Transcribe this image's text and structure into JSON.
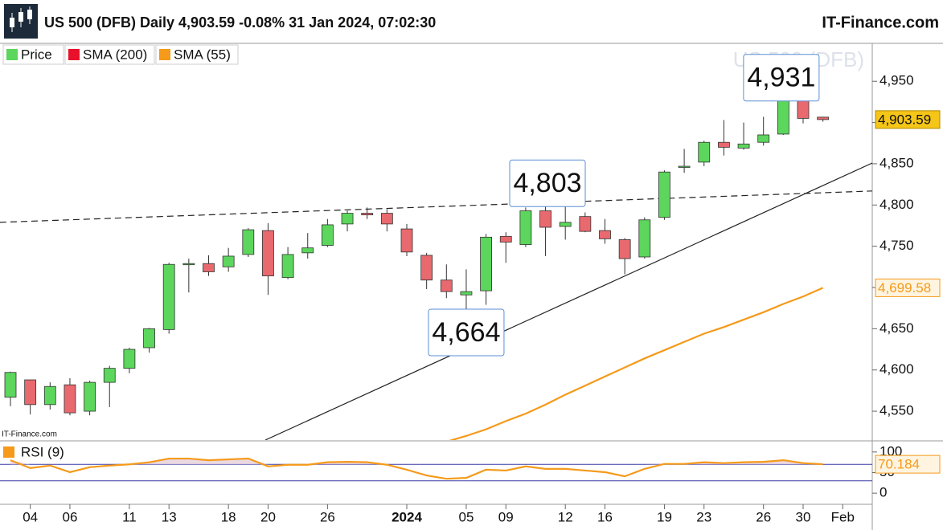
{
  "header": {
    "title": "US 500 (DFB) Daily 4,903.59 -0.08% 31 Jan 2024, 07:02:30",
    "brand": "IT-Finance.com"
  },
  "chart_data": [
    {
      "type": "candlestick",
      "watermark": "US 500 (DFB)",
      "source": "IT-Finance.com",
      "categories": [
        null,
        "04",
        null,
        "06",
        null,
        null,
        "11",
        null,
        "13",
        null,
        null,
        "18",
        null,
        "20",
        null,
        null,
        "26",
        null,
        null,
        null,
        "2024",
        null,
        null,
        "05",
        null,
        "09",
        null,
        null,
        "12",
        null,
        "16",
        null,
        null,
        "19",
        null,
        "23",
        null,
        null,
        "26",
        null,
        "30",
        null,
        "Feb"
      ],
      "series": [
        {
          "name": "Price",
          "up_color": "#5cd65c",
          "down_color": "#e8696e",
          "open": [
            4567,
            4588,
            4558,
            4582,
            4550,
            4585,
            4602,
            4627,
            4649,
            4728,
            4729,
            4725,
            4740,
            4769,
            4712,
            4742,
            4751,
            4777,
            4790,
            4790,
            4771,
            4739,
            4709,
            4691,
            4696,
            4762,
            4752,
            4793,
            4774,
            4786,
            4769,
            4758,
            4737,
            4785,
            4847,
            4852,
            4876,
            4869,
            4876,
            4886,
            4929,
            4906.5,
            null
          ],
          "high": [
            4598,
            4588,
            4585,
            4590,
            4587,
            4605,
            4627,
            4651,
            4730,
            4735,
            4739,
            4748,
            4772,
            4778,
            4749,
            4766,
            4783,
            4793,
            4797,
            4795,
            4777,
            4742,
            4728,
            4722,
            4765,
            4767,
            4797,
            4803,
            4803,
            4791,
            4783,
            4760,
            4785,
            4842,
            4868,
            4878,
            4903,
            4900,
            4907,
            4929,
            4931,
            4907,
            null
          ],
          "low": [
            4556,
            4546,
            4552,
            4545,
            4545,
            4555,
            4596,
            4621,
            4644,
            4694,
            4714,
            4719,
            4737,
            4691,
            4710,
            4735,
            4749,
            4768,
            4783,
            4768,
            4738,
            4698,
            4687,
            4664,
            4679,
            4730,
            4749,
            4738,
            4758,
            4767,
            4753,
            4716,
            4735,
            4782,
            4839,
            4847,
            4860,
            4867,
            4872,
            4885,
            4899,
            4901,
            null
          ],
          "close": [
            4597,
            4558,
            4580,
            4548,
            4585,
            4602,
            4625,
            4650,
            4728,
            4729,
            4719,
            4738,
            4770,
            4714,
            4740,
            4748,
            4776,
            4790,
            4788,
            4777,
            4743,
            4709,
            4695,
            4695,
            4761,
            4755,
            4793,
            4773,
            4779,
            4768,
            4759,
            4735,
            4782,
            4840,
            4847,
            4876,
            4870,
            4874,
            4885,
            4927,
            4905,
            4903.59,
            null
          ],
          "last_label": {
            "value": 4903.59,
            "label": "4,903.59"
          }
        },
        {
          "name": "SMA (200)",
          "color": "#e8102a",
          "values": [
            null,
            null,
            null,
            null,
            null,
            null,
            null,
            null,
            null,
            null,
            null,
            null,
            null,
            null,
            null,
            null,
            null,
            null,
            null,
            null,
            null,
            null,
            null,
            null,
            null,
            null,
            null,
            null,
            null,
            null,
            null,
            null,
            null,
            null,
            null,
            null,
            null,
            null,
            null,
            null,
            null,
            null,
            null
          ]
        },
        {
          "name": "SMA (55)",
          "color": "#f59a1a",
          "values": [
            null,
            null,
            null,
            null,
            null,
            null,
            null,
            null,
            null,
            null,
            null,
            null,
            null,
            null,
            null,
            null,
            null,
            null,
            null,
            null,
            null,
            null,
            4513,
            4520,
            4528,
            4538,
            4547,
            4558,
            4570,
            4581,
            4592,
            4603,
            4614,
            4624,
            4634,
            4644,
            4652,
            4661,
            4670,
            4680,
            4689,
            4699.58,
            null
          ],
          "last_label": {
            "value": 4699.58,
            "label": "4,699.58"
          }
        }
      ],
      "ylim": [
        4515,
        4995
      ],
      "yticks": [
        {
          "value": 4550,
          "label": "4,550"
        },
        {
          "value": 4600,
          "label": "4,600"
        },
        {
          "value": 4650,
          "label": "4,650"
        },
        {
          "value": 4700,
          "label": "4,700"
        },
        {
          "value": 4750,
          "label": "4,750"
        },
        {
          "value": 4800,
          "label": "4,800"
        },
        {
          "value": 4850,
          "label": "4,850"
        },
        {
          "value": 4900,
          "label": "4,900"
        },
        {
          "value": 4950,
          "label": "4,950"
        }
      ],
      "annotations": [
        {
          "label": "4,931",
          "value": 4931,
          "x": 38.9,
          "anchor": "above"
        },
        {
          "label": "4,803",
          "value": 4803,
          "x": 27.1,
          "anchor": "above"
        },
        {
          "label": "4,664",
          "value": 4664,
          "x": 23,
          "anchor": "below"
        }
      ],
      "trendlines": [
        {
          "style": "dashed",
          "x": [
            -0.53,
            43.5
          ],
          "y": [
            4779,
            4817
          ]
        },
        {
          "style": "solid",
          "x": [
            12.86,
            43.5
          ],
          "y": [
            4515,
            4851
          ]
        }
      ]
    },
    {
      "type": "line",
      "series": [
        {
          "name": "RSI (9)",
          "color": "#f59a1a",
          "values": [
            80,
            61,
            67,
            51,
            63,
            67,
            70,
            75,
            84,
            84,
            80,
            82,
            84,
            65,
            69,
            69,
            75,
            76,
            75,
            69,
            57,
            43,
            35,
            37,
            57,
            55,
            65,
            59,
            59,
            55,
            51,
            41,
            59,
            71,
            71,
            75,
            73,
            75,
            76,
            80,
            73,
            70.184,
            null
          ],
          "last_label": {
            "value": 70.184,
            "label": "70.184"
          }
        }
      ],
      "ylim": [
        -27,
        125
      ],
      "yticks": [
        0,
        50,
        100
      ],
      "levels": [
        30,
        70
      ],
      "level_color": "#3a3aa8"
    }
  ]
}
